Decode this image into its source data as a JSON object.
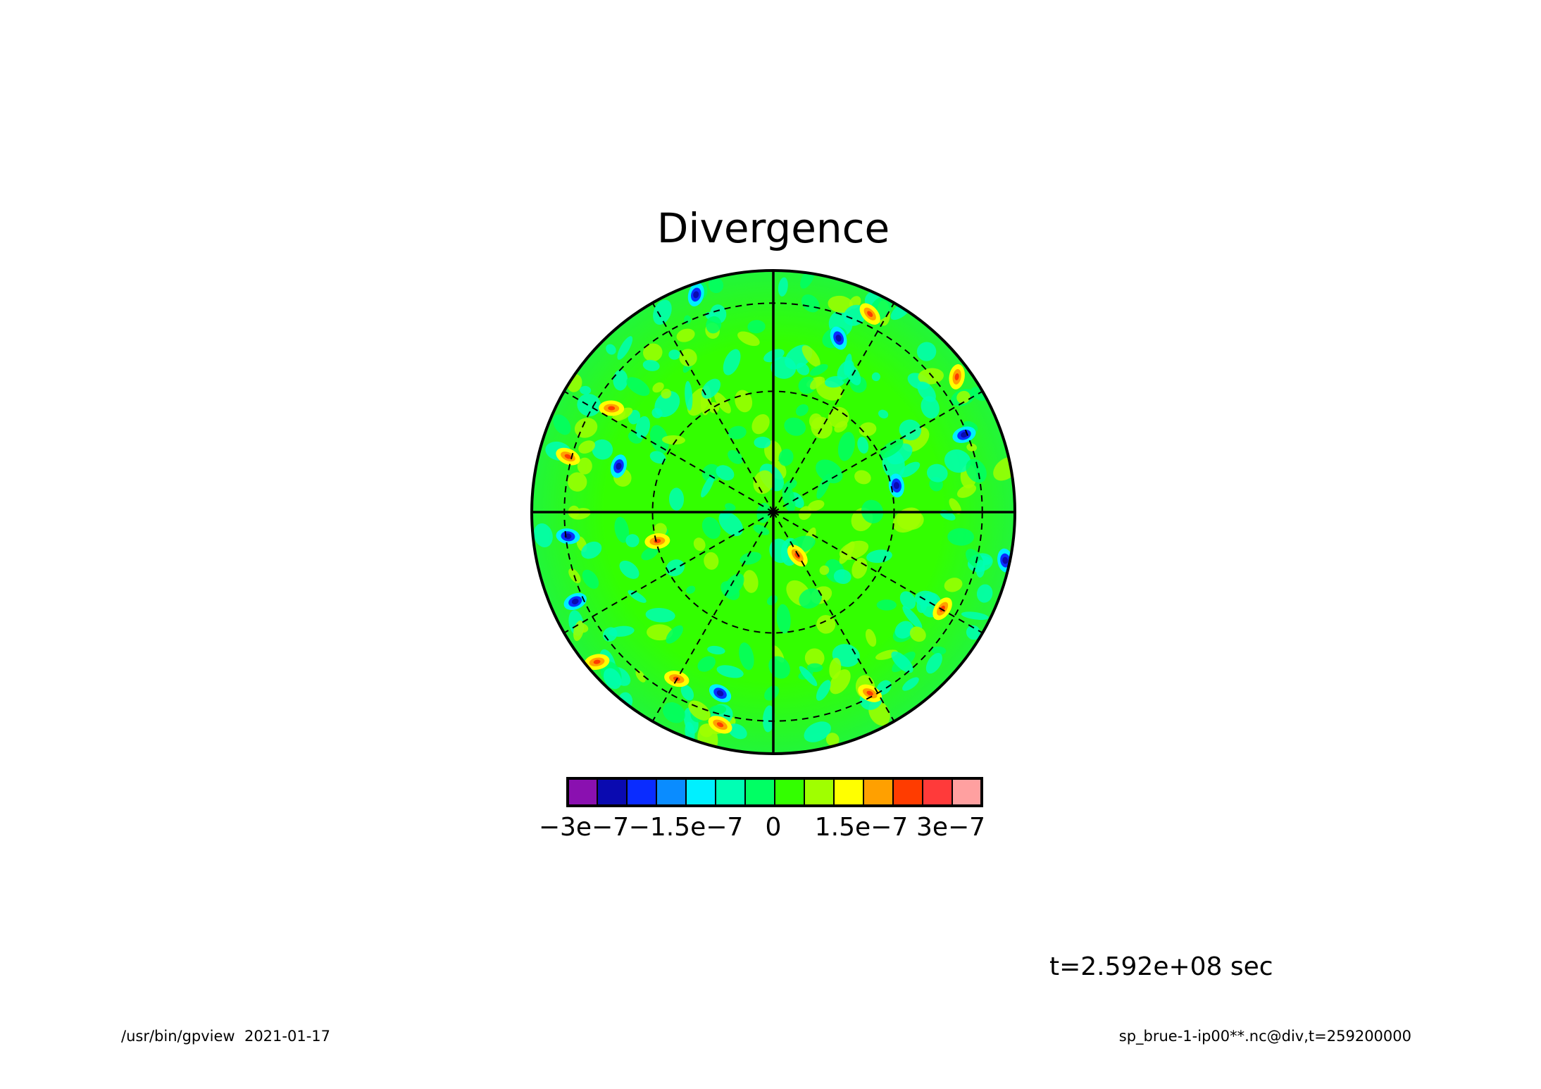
{
  "chart_data": {
    "type": "heatmap",
    "projection": "polar-stereographic",
    "title": "Divergence",
    "colorbar": {
      "colors": [
        "#8a10b0",
        "#0a0ab0",
        "#0a2cff",
        "#0a8cff",
        "#00f0ff",
        "#00ffb4",
        "#00ff64",
        "#33ff00",
        "#a0ff00",
        "#ffff00",
        "#ffa000",
        "#ff3c00",
        "#ff3a3a",
        "#ffa0a0"
      ],
      "tick_labels": [
        "−3e−7",
        "−1.5e−7",
        "0",
        "1.5e−7",
        "3e−7"
      ],
      "tick_values": [
        -3e-07,
        -1.5e-07,
        0,
        1.5e-07,
        3e-07
      ],
      "range": [
        -3.5e-07,
        3.5e-07
      ]
    },
    "grid": {
      "meridians": "dashed every 30 degrees, solid at 0/90/180/270",
      "parallels": "dashed circles"
    },
    "field_description": "mostly near-zero (green) with scattered small positive (yellow-red) and negative (blue) blobs, concentrated near outer rim"
  },
  "annotations": {
    "time_label": "t=2.592e+08 sec",
    "footer_left": "/usr/bin/gpview  2021-01-17",
    "footer_right": "sp_brue-1-ip00**.nc@div,t=259200000"
  }
}
